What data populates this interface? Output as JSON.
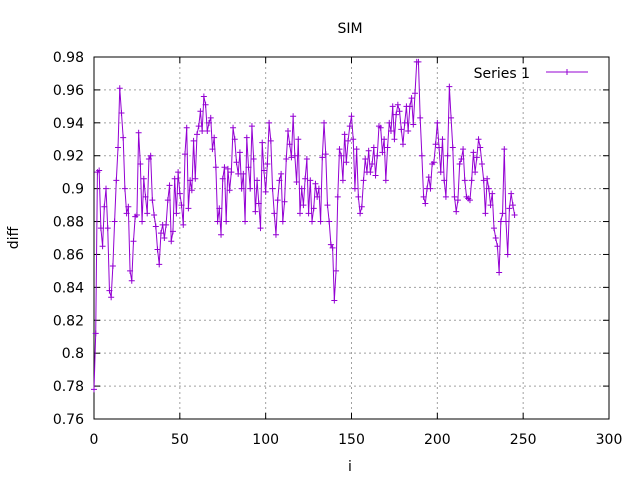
{
  "chart_data": {
    "type": "line",
    "title": "SIM",
    "xlabel": "i",
    "ylabel": "diff",
    "xlim": [
      0,
      300
    ],
    "ylim": [
      0.76,
      0.98
    ],
    "grid": true,
    "legend_position": "top-right",
    "x_ticks": [
      "0",
      "50",
      "100",
      "150",
      "200",
      "250",
      "300"
    ],
    "y_ticks": [
      "0.76",
      "0.78",
      "0.8",
      "0.82",
      "0.84",
      "0.86",
      "0.88",
      "0.9",
      "0.92",
      "0.94",
      "0.96",
      "0.98"
    ],
    "series": [
      {
        "name": "Series 1",
        "color": "#9400d3",
        "marker": "plus",
        "x_start": 0,
        "x_step": 1,
        "values": [
          0.778,
          0.812,
          0.91,
          0.911,
          0.876,
          0.865,
          0.889,
          0.9,
          0.876,
          0.838,
          0.834,
          0.853,
          0.88,
          0.905,
          0.925,
          0.961,
          0.946,
          0.931,
          0.9,
          0.885,
          0.889,
          0.85,
          0.844,
          0.868,
          0.883,
          0.884,
          0.934,
          0.915,
          0.88,
          0.906,
          0.895,
          0.885,
          0.918,
          0.92,
          0.893,
          0.884,
          0.877,
          0.863,
          0.854,
          0.873,
          0.878,
          0.87,
          0.878,
          0.893,
          0.902,
          0.868,
          0.874,
          0.906,
          0.885,
          0.91,
          0.897,
          0.89,
          0.878,
          0.921,
          0.937,
          0.888,
          0.905,
          0.899,
          0.929,
          0.906,
          0.933,
          0.938,
          0.947,
          0.935,
          0.956,
          0.951,
          0.935,
          0.94,
          0.943,
          0.924,
          0.931,
          0.913,
          0.88,
          0.888,
          0.872,
          0.906,
          0.913,
          0.88,
          0.912,
          0.899,
          0.91,
          0.937,
          0.93,
          0.916,
          0.909,
          0.922,
          0.9,
          0.909,
          0.88,
          0.931,
          0.913,
          0.9,
          0.938,
          0.918,
          0.886,
          0.905,
          0.891,
          0.876,
          0.928,
          0.911,
          0.898,
          0.915,
          0.94,
          0.929,
          0.9,
          0.885,
          0.872,
          0.893,
          0.905,
          0.909,
          0.88,
          0.892,
          0.918,
          0.935,
          0.927,
          0.919,
          0.944,
          0.92,
          0.904,
          0.93,
          0.885,
          0.9,
          0.89,
          0.906,
          0.918,
          0.885,
          0.905,
          0.88,
          0.888,
          0.903,
          0.895,
          0.9,
          0.88,
          0.919,
          0.94,
          0.921,
          0.89,
          0.88,
          0.866,
          0.864,
          0.832,
          0.85,
          0.895,
          0.924,
          0.92,
          0.905,
          0.933,
          0.916,
          0.929,
          0.938,
          0.944,
          0.93,
          0.9,
          0.924,
          0.895,
          0.885,
          0.889,
          0.905,
          0.918,
          0.91,
          0.923,
          0.91,
          0.915,
          0.925,
          0.908,
          0.92,
          0.938,
          0.937,
          0.922,
          0.93,
          0.905,
          0.925,
          0.94,
          0.935,
          0.95,
          0.93,
          0.945,
          0.951,
          0.947,
          0.936,
          0.927,
          0.94,
          0.95,
          0.935,
          0.95,
          0.955,
          0.939,
          0.958,
          0.977,
          0.977,
          0.943,
          0.92,
          0.895,
          0.891,
          0.9,
          0.907,
          0.9,
          0.915,
          0.916,
          0.927,
          0.94,
          0.925,
          0.91,
          0.93,
          0.905,
          0.895,
          0.92,
          0.962,
          0.943,
          0.925,
          0.895,
          0.886,
          0.893,
          0.915,
          0.918,
          0.924,
          0.905,
          0.895,
          0.894,
          0.893,
          0.905,
          0.922,
          0.91,
          0.919,
          0.93,
          0.925,
          0.915,
          0.905,
          0.885,
          0.906,
          0.9,
          0.89,
          0.897,
          0.876,
          0.87,
          0.865,
          0.849,
          0.88,
          0.885,
          0.924,
          0.88,
          0.86,
          0.888,
          0.897,
          0.89,
          0.884
        ]
      }
    ]
  }
}
